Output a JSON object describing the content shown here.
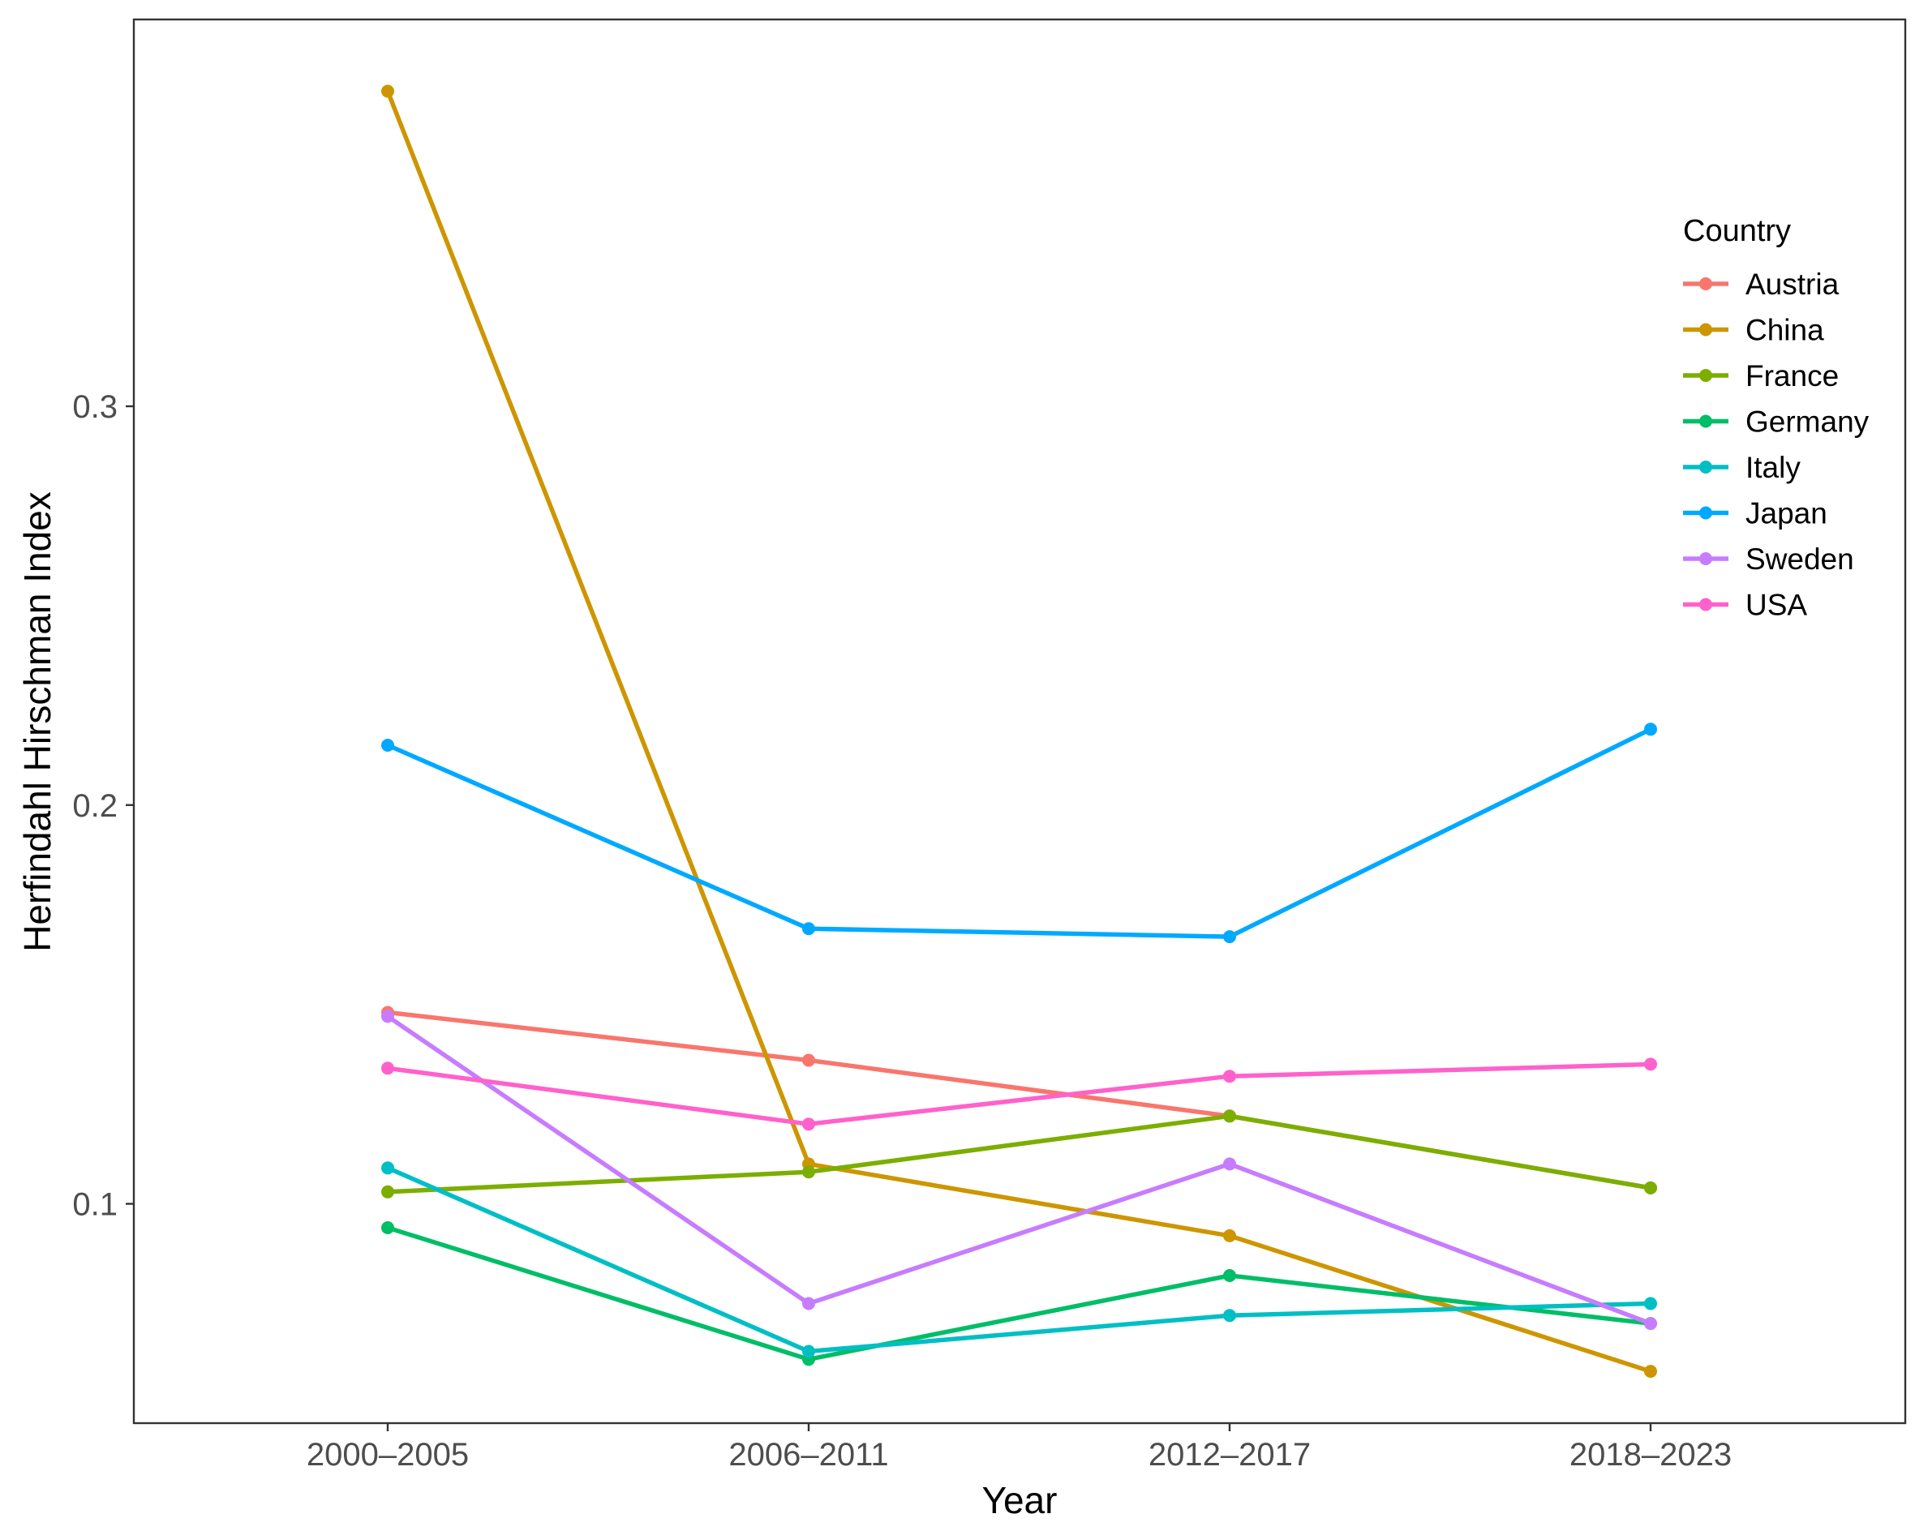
{
  "chart_data": {
    "type": "line",
    "title": "",
    "xlabel": "Year",
    "ylabel": "Herfindahl Hirschman Index",
    "categories": [
      "2000–2005",
      "2006–2011",
      "2012–2017",
      "2018–2023"
    ],
    "ylim": [
      0.045,
      0.397
    ],
    "yticks": [
      0.1,
      0.2,
      0.3
    ],
    "ytick_labels": [
      "0.1",
      "0.2",
      "0.3"
    ],
    "grid": false,
    "legend": {
      "title": "Country",
      "position": "right"
    },
    "series": [
      {
        "name": "Austria",
        "color": "#F8766D",
        "values": [
          0.148,
          0.136,
          0.122,
          0.104
        ]
      },
      {
        "name": "China",
        "color": "#CD9600",
        "values": [
          0.379,
          0.11,
          0.092,
          0.058
        ]
      },
      {
        "name": "France",
        "color": "#7CAE00",
        "values": [
          0.103,
          0.108,
          0.122,
          0.104
        ]
      },
      {
        "name": "Germany",
        "color": "#00BE67",
        "values": [
          0.094,
          0.061,
          0.082,
          0.07
        ]
      },
      {
        "name": "Italy",
        "color": "#00BFC4",
        "values": [
          0.109,
          0.063,
          0.072,
          0.075
        ]
      },
      {
        "name": "Japan",
        "color": "#00A9FF",
        "values": [
          0.215,
          0.169,
          0.167,
          0.219
        ]
      },
      {
        "name": "Sweden",
        "color": "#C77CFF",
        "values": [
          0.147,
          0.075,
          0.11,
          0.07
        ]
      },
      {
        "name": "USA",
        "color": "#FF61CC",
        "values": [
          0.134,
          0.12,
          0.132,
          0.135
        ]
      }
    ]
  }
}
